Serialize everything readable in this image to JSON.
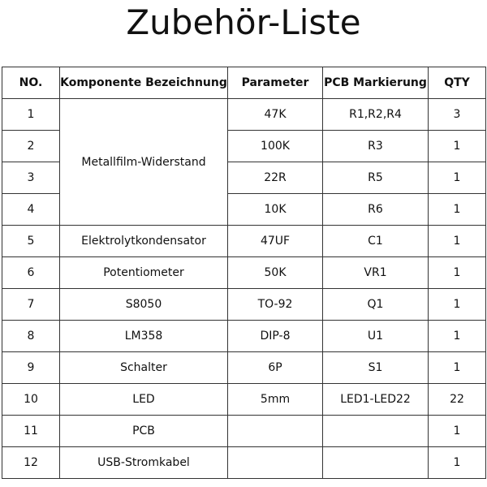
{
  "title": "Zubehör-Liste",
  "headers": [
    "NO.",
    "Komponente Bezeichnung",
    "Parameter",
    "PCB Markierung",
    "QTY"
  ],
  "rows": [
    {
      "no": "1",
      "component": "Metallfilm-Widerstand",
      "parameter": "47K",
      "pcb": "R1,R2,R4",
      "qty": "3"
    },
    {
      "no": "2",
      "component": "",
      "parameter": "100K",
      "pcb": "R3",
      "qty": "1"
    },
    {
      "no": "3",
      "component": "",
      "parameter": "22R",
      "pcb": "R5",
      "qty": "1"
    },
    {
      "no": "4",
      "component": "",
      "parameter": "10K",
      "pcb": "R6",
      "qty": "1"
    },
    {
      "no": "5",
      "component": "Elektrolytkondensator",
      "parameter": "47UF",
      "pcb": "C1",
      "qty": "1"
    },
    {
      "no": "6",
      "component": "Potentiometer",
      "parameter": "50K",
      "pcb": "VR1",
      "qty": "1"
    },
    {
      "no": "7",
      "component": "S8050",
      "parameter": "TO-92",
      "pcb": "Q1",
      "qty": "1"
    },
    {
      "no": "8",
      "component": "LM358",
      "parameter": "DIP-8",
      "pcb": "U1",
      "qty": "1"
    },
    {
      "no": "9",
      "component": "Schalter",
      "parameter": "6P",
      "pcb": "S1",
      "qty": "1"
    },
    {
      "no": "10",
      "component": "LED",
      "parameter": "5mm",
      "pcb": "LED1-LED22",
      "qty": "22"
    },
    {
      "no": "11",
      "component": "PCB",
      "parameter": "",
      "pcb": "",
      "qty": "1"
    },
    {
      "no": "12",
      "component": "USB-Stromkabel",
      "parameter": "",
      "pcb": "",
      "qty": "1"
    }
  ]
}
